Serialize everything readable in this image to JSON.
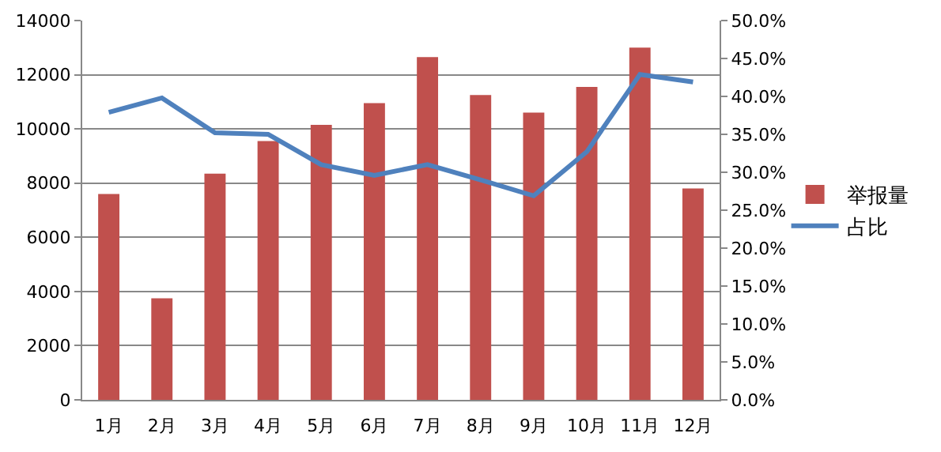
{
  "chart_data": {
    "type": "bar",
    "categories": [
      "1月",
      "2月",
      "3月",
      "4月",
      "5月",
      "6月",
      "7月",
      "8月",
      "9月",
      "10月",
      "11月",
      "12月"
    ],
    "series": [
      {
        "name": "举报量",
        "color": "#c0504d",
        "values": [
          7600,
          3750,
          8350,
          9550,
          10150,
          10950,
          12650,
          11250,
          10600,
          11550,
          13000,
          7800
        ]
      },
      {
        "name": "占比",
        "type": "line",
        "axis": "y2",
        "color": "#4f81bd",
        "values": [
          37.9,
          39.8,
          35.2,
          35.0,
          31.0,
          29.6,
          31.0,
          29.0,
          26.9,
          32.7,
          42.9,
          41.9
        ]
      }
    ],
    "ylim": [
      0,
      14000
    ],
    "yticks": [
      0,
      2000,
      4000,
      6000,
      8000,
      10000,
      12000,
      14000
    ],
    "y2lim": [
      0,
      50
    ],
    "y2ticks": [
      {
        "value": 0,
        "label": "0.0%"
      },
      {
        "value": 5,
        "label": "5.0%"
      },
      {
        "value": 10,
        "label": "10.0%"
      },
      {
        "value": 15,
        "label": "15.0%"
      },
      {
        "value": 20,
        "label": "20.0%"
      },
      {
        "value": 25,
        "label": "25.0%"
      },
      {
        "value": 30,
        "label": "30.0%"
      },
      {
        "value": 35,
        "label": "35.0%"
      },
      {
        "value": 40,
        "label": "40.0%"
      },
      {
        "value": 45,
        "label": "45.0%"
      },
      {
        "value": 50,
        "label": "50.0%"
      }
    ],
    "grid": "y",
    "legend": "right",
    "marker": "none",
    "line_style": "solid"
  }
}
